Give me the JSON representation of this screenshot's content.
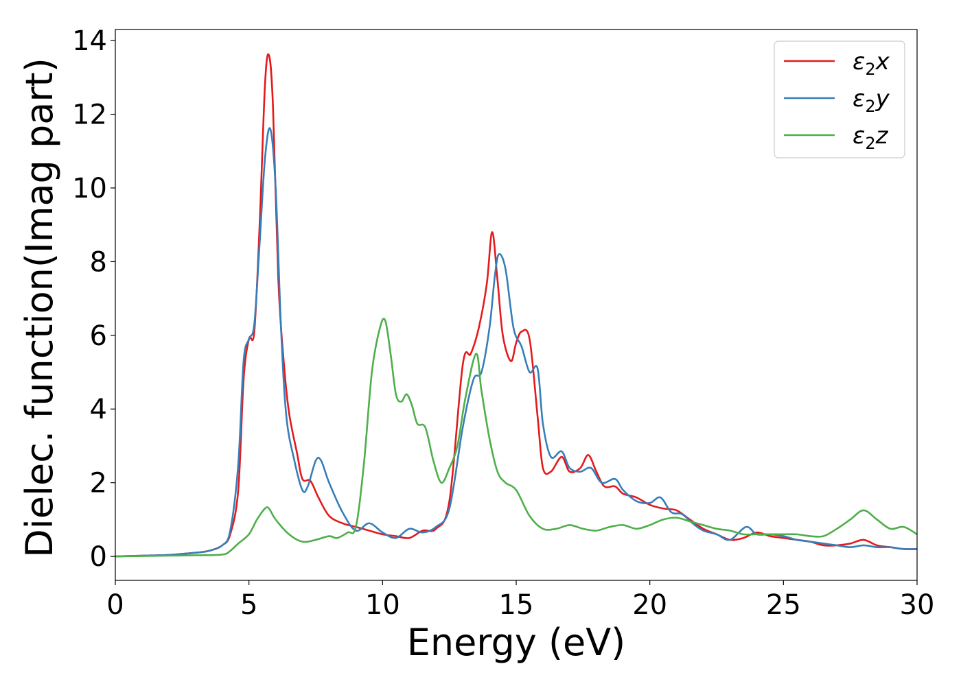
{
  "chart_data": {
    "type": "line",
    "xlabel": "Energy (eV)",
    "ylabel": "Dielec. function(Imag part)",
    "xlim": [
      0,
      30
    ],
    "ylim": [
      -0.65,
      14.3
    ],
    "xticks": [
      0,
      5,
      10,
      15,
      20,
      25,
      30
    ],
    "yticks": [
      0,
      2,
      4,
      6,
      8,
      10,
      12,
      14
    ],
    "grid": false,
    "legend_position": "top-right",
    "series": [
      {
        "name": "ε₂x",
        "legend_base": "ε",
        "legend_sub": "2",
        "legend_suffix": "x",
        "color": "#e41a1c",
        "x": [
          0,
          1,
          2,
          3,
          3.5,
          4,
          4.3,
          4.6,
          4.8,
          5.0,
          5.2,
          5.4,
          5.6,
          5.75,
          5.9,
          6.1,
          6.3,
          6.5,
          6.8,
          7.0,
          7.3,
          7.6,
          8.0,
          8.5,
          9.0,
          9.5,
          10.0,
          10.5,
          11.0,
          11.5,
          12.0,
          12.5,
          13.0,
          13.3,
          13.6,
          13.9,
          14.1,
          14.3,
          14.5,
          14.8,
          15.0,
          15.2,
          15.5,
          15.8,
          16.0,
          16.3,
          16.7,
          17.0,
          17.4,
          17.7,
          18.0,
          18.3,
          18.7,
          19.0,
          19.5,
          20.0,
          20.5,
          21.0,
          21.5,
          22.0,
          22.5,
          23.0,
          23.5,
          24.0,
          24.5,
          25.0,
          25.5,
          26.0,
          26.5,
          27.0,
          27.5,
          28.0,
          28.5,
          29.0,
          29.5,
          30.0
        ],
        "y": [
          0,
          0.02,
          0.04,
          0.1,
          0.15,
          0.3,
          0.6,
          1.8,
          4.8,
          5.9,
          6.1,
          9.0,
          12.8,
          13.6,
          12.2,
          7.5,
          5.3,
          3.9,
          2.8,
          2.1,
          2.05,
          1.6,
          1.1,
          0.9,
          0.8,
          0.7,
          0.6,
          0.55,
          0.5,
          0.7,
          0.75,
          1.5,
          5.2,
          5.5,
          6.2,
          7.4,
          8.8,
          7.5,
          6.0,
          5.3,
          5.8,
          6.1,
          5.9,
          3.8,
          2.4,
          2.3,
          2.7,
          2.3,
          2.4,
          2.75,
          2.3,
          1.9,
          1.9,
          1.7,
          1.6,
          1.4,
          1.3,
          1.25,
          1.0,
          0.75,
          0.6,
          0.45,
          0.5,
          0.65,
          0.55,
          0.5,
          0.45,
          0.4,
          0.3,
          0.3,
          0.35,
          0.45,
          0.3,
          0.25,
          0.2,
          0.2
        ]
      },
      {
        "name": "ε₂y",
        "legend_base": "ε",
        "legend_sub": "2",
        "legend_suffix": "y",
        "color": "#377eb8",
        "x": [
          0,
          1,
          2,
          3,
          3.5,
          4,
          4.3,
          4.6,
          4.8,
          5.0,
          5.2,
          5.4,
          5.6,
          5.8,
          6.0,
          6.2,
          6.4,
          6.7,
          7.0,
          7.2,
          7.5,
          7.7,
          8.0,
          8.5,
          9.0,
          9.5,
          10.0,
          10.5,
          11.0,
          11.5,
          12.0,
          12.5,
          13.0,
          13.4,
          13.7,
          14.0,
          14.2,
          14.35,
          14.6,
          14.9,
          15.2,
          15.5,
          15.8,
          16.0,
          16.3,
          16.7,
          17.0,
          17.4,
          17.8,
          18.2,
          18.7,
          19.0,
          19.5,
          20.0,
          20.4,
          20.8,
          21.2,
          21.6,
          22.0,
          22.5,
          23.0,
          23.6,
          24.0,
          24.5,
          25.0,
          25.5,
          26.0,
          26.5,
          27.0,
          27.5,
          28.0,
          28.5,
          29.0,
          29.5,
          30.0
        ],
        "y": [
          0,
          0.02,
          0.04,
          0.1,
          0.15,
          0.3,
          0.7,
          2.5,
          5.3,
          5.9,
          6.3,
          8.5,
          10.8,
          11.6,
          10.0,
          6.2,
          3.8,
          2.6,
          1.8,
          1.9,
          2.6,
          2.6,
          2.0,
          1.2,
          0.7,
          0.9,
          0.65,
          0.5,
          0.75,
          0.65,
          0.8,
          1.3,
          3.5,
          4.8,
          5.0,
          6.2,
          7.6,
          8.2,
          7.8,
          6.2,
          5.7,
          5.0,
          5.1,
          3.6,
          2.7,
          2.85,
          2.4,
          2.3,
          2.4,
          2.0,
          2.1,
          1.8,
          1.5,
          1.45,
          1.6,
          1.2,
          1.15,
          0.9,
          0.7,
          0.6,
          0.45,
          0.8,
          0.6,
          0.6,
          0.55,
          0.45,
          0.4,
          0.35,
          0.3,
          0.25,
          0.3,
          0.25,
          0.25,
          0.2,
          0.2
        ]
      },
      {
        "name": "ε₂z",
        "legend_base": "ε",
        "legend_sub": "2",
        "legend_suffix": "z",
        "color": "#4daf4a",
        "x": [
          0,
          1,
          2,
          3,
          4,
          4.3,
          4.6,
          5.0,
          5.3,
          5.6,
          5.75,
          6.0,
          6.5,
          7.0,
          7.5,
          8.0,
          8.3,
          8.7,
          9.0,
          9.3,
          9.6,
          9.9,
          10.1,
          10.3,
          10.5,
          10.7,
          10.9,
          11.1,
          11.3,
          11.6,
          11.9,
          12.2,
          12.5,
          12.8,
          13.1,
          13.5,
          13.7,
          14.0,
          14.3,
          14.6,
          15.0,
          15.5,
          16.0,
          16.5,
          17.0,
          17.5,
          18.0,
          18.5,
          19.0,
          19.5,
          20.0,
          20.5,
          21.0,
          21.5,
          22.0,
          22.5,
          23.0,
          23.5,
          24.0,
          24.5,
          25.0,
          25.5,
          26.0,
          26.5,
          27.0,
          27.5,
          28.0,
          28.5,
          29.0,
          29.5,
          30.0
        ],
        "y": [
          0,
          0.01,
          0.02,
          0.03,
          0.05,
          0.15,
          0.35,
          0.6,
          1.0,
          1.3,
          1.3,
          1.0,
          0.6,
          0.4,
          0.45,
          0.55,
          0.5,
          0.65,
          0.8,
          2.5,
          5.0,
          6.2,
          6.4,
          5.5,
          4.4,
          4.2,
          4.4,
          4.1,
          3.6,
          3.5,
          2.6,
          2.0,
          2.4,
          3.0,
          4.3,
          5.5,
          4.5,
          3.2,
          2.3,
          2.0,
          1.8,
          1.1,
          0.75,
          0.75,
          0.85,
          0.75,
          0.7,
          0.8,
          0.85,
          0.75,
          0.85,
          1.0,
          1.05,
          0.95,
          0.85,
          0.75,
          0.7,
          0.6,
          0.6,
          0.6,
          0.6,
          0.6,
          0.55,
          0.55,
          0.75,
          1.0,
          1.25,
          1.0,
          0.75,
          0.8,
          0.6
        ]
      }
    ]
  }
}
